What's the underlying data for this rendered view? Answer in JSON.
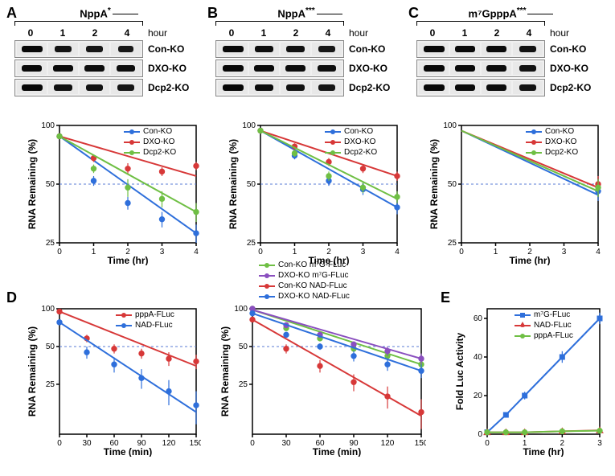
{
  "colors": {
    "blue": "#2e6fdb",
    "red": "#d73838",
    "green": "#6fbf44",
    "purple": "#8a4fbf",
    "grid": "#bbbbbb",
    "dashed": "#5a7bd6",
    "band": "#1a1a1a",
    "axis": "#000000"
  },
  "panels": {
    "A": {
      "label": "A",
      "title_prefix": "NppA",
      "title_symbol": "*",
      "title_trailing_line": true,
      "times": [
        "0",
        "1",
        "2",
        "4"
      ],
      "hour": "hour",
      "rows": [
        "Con-KO",
        "DXO-KO",
        "Dcp2-KO"
      ],
      "band_intensity": [
        [
          1.0,
          0.55,
          0.45,
          0.38
        ],
        [
          0.95,
          0.9,
          0.85,
          0.8
        ],
        [
          1.0,
          0.7,
          0.6,
          0.5
        ]
      ],
      "band_width": 26
    },
    "B": {
      "label": "B",
      "title_prefix": "NppA",
      "title_symbol": "***",
      "title_trailing_line": true,
      "times": [
        "0",
        "1",
        "2",
        "4"
      ],
      "hour": "hour",
      "rows": [
        "Con-KO",
        "DXO-KO",
        "Dcp2-KO"
      ],
      "band_intensity": [
        [
          1.0,
          0.8,
          0.7,
          0.45
        ],
        [
          1.0,
          0.9,
          0.85,
          0.75
        ],
        [
          1.0,
          0.8,
          0.7,
          0.5
        ]
      ],
      "band_width": 26
    },
    "C": {
      "label": "C",
      "title_prefix": "m⁷GpppA",
      "title_symbol": "***",
      "title_trailing_line": true,
      "times": [
        "0",
        "1",
        "2",
        "4"
      ],
      "hour": "hour",
      "rows": [
        "Con-KO",
        "DXO-KO",
        "Dcp2-KO"
      ],
      "band_intensity": [
        [
          1.0,
          0.95,
          0.88,
          0.6
        ],
        [
          1.0,
          0.95,
          0.88,
          0.6
        ],
        [
          1.0,
          0.95,
          0.88,
          0.6
        ]
      ],
      "band_width": 26
    }
  },
  "charts": {
    "chartA": {
      "x": [
        0,
        1,
        2,
        3,
        4
      ],
      "xlim": [
        0,
        4
      ],
      "xticks": [
        0,
        1,
        2,
        3,
        4
      ],
      "xlabel": "Time (hr)",
      "ylabel": "RNA Remaining (%)",
      "ylim": [
        25,
        100
      ],
      "yticks": [
        25,
        50,
        100
      ],
      "yscale": "log2_like",
      "series": [
        {
          "name": "Con-KO",
          "color": "blue",
          "x": [
            0,
            1,
            2,
            3,
            4
          ],
          "y": [
            88,
            52,
            40,
            33,
            28
          ],
          "fit_y": [
            88,
            28
          ],
          "err": [
            0,
            3,
            3,
            3,
            3
          ]
        },
        {
          "name": "DXO-KO",
          "color": "red",
          "x": [
            0,
            1,
            2,
            3,
            4
          ],
          "y": [
            88,
            68,
            60,
            58,
            62
          ],
          "fit_y": [
            88,
            55
          ],
          "err": [
            0,
            3,
            4,
            3,
            3
          ]
        },
        {
          "name": "Dcp2-KO",
          "color": "green",
          "x": [
            0,
            1,
            2,
            3,
            4
          ],
          "y": [
            88,
            60,
            48,
            42,
            36
          ],
          "fit_y": [
            88,
            36
          ],
          "err": [
            0,
            3,
            5,
            4,
            4
          ]
        }
      ],
      "legend": [
        [
          "Con-KO",
          "blue"
        ],
        [
          "DXO-KO",
          "red"
        ],
        [
          "Dcp2-KO",
          "green"
        ]
      ]
    },
    "chartB": {
      "x": [
        0,
        1,
        2,
        3,
        4
      ],
      "xlim": [
        0,
        4
      ],
      "xticks": [
        0,
        1,
        2,
        3,
        4
      ],
      "xlabel": "Time (hr)",
      "ylabel": "RNA Remaining (%)",
      "ylim": [
        25,
        100
      ],
      "yticks": [
        25,
        50,
        100
      ],
      "yscale": "log2_like",
      "series": [
        {
          "name": "Con-KO",
          "color": "blue",
          "x": [
            0,
            1,
            2,
            3,
            4
          ],
          "y": [
            94,
            70,
            52,
            47,
            38
          ],
          "fit_y": [
            94,
            38
          ],
          "err": [
            0,
            3,
            3,
            3,
            3
          ]
        },
        {
          "name": "DXO-KO",
          "color": "red",
          "x": [
            0,
            1,
            2,
            3,
            4
          ],
          "y": [
            94,
            78,
            65,
            60,
            55
          ],
          "fit_y": [
            94,
            55
          ],
          "err": [
            0,
            3,
            3,
            3,
            3
          ]
        },
        {
          "name": "Dcp2-KO",
          "color": "green",
          "x": [
            0,
            1,
            2,
            3,
            4
          ],
          "y": [
            94,
            72,
            55,
            48,
            43
          ],
          "fit_y": [
            94,
            42
          ],
          "err": [
            0,
            3,
            3,
            3,
            3
          ]
        }
      ],
      "legend": [
        [
          "Con-KO",
          "blue"
        ],
        [
          "DXO-KO",
          "red"
        ],
        [
          "Dcp2-KO",
          "green"
        ]
      ]
    },
    "chartC": {
      "x": [
        0,
        1,
        2,
        3,
        4
      ],
      "xlim": [
        0,
        4
      ],
      "xticks": [
        0,
        1,
        2,
        3,
        4
      ],
      "xlabel": "Time (hr)",
      "ylabel": "RNA Remaining (%)",
      "ylim": [
        25,
        100
      ],
      "yticks": [
        25,
        50,
        100
      ],
      "yscale": "log2_like",
      "series": [
        {
          "name": "Con-KO",
          "color": "blue",
          "x": [
            0,
            4
          ],
          "y": [
            94,
            46
          ],
          "fit_y": [
            94,
            44
          ],
          "points_x": [
            4
          ],
          "points_y": [
            46
          ],
          "err": [
            5
          ]
        },
        {
          "name": "DXO-KO",
          "color": "red",
          "x": [
            0,
            4
          ],
          "y": [
            94,
            50
          ],
          "fit_y": [
            94,
            48
          ],
          "points_x": [
            4
          ],
          "points_y": [
            50
          ],
          "err": [
            5
          ]
        },
        {
          "name": "Dcp2-KO",
          "color": "green",
          "x": [
            0,
            4
          ],
          "y": [
            94,
            48
          ],
          "fit_y": [
            94,
            46
          ],
          "points_x": [
            4
          ],
          "points_y": [
            48
          ],
          "err": [
            5
          ]
        }
      ],
      "legend": [
        [
          "Con-KO",
          "blue"
        ],
        [
          "DXO-KO",
          "red"
        ],
        [
          "Dcp2-KO",
          "green"
        ]
      ]
    },
    "chartD1": {
      "xlim": [
        0,
        150
      ],
      "xticks": [
        0,
        30,
        60,
        90,
        120,
        150
      ],
      "xlabel": "Time (min)",
      "ylabel": "RNA Remaining (%)",
      "ylim": [
        10,
        100
      ],
      "yticks": [
        25,
        50,
        100
      ],
      "yscale": "log2_like_ext",
      "series": [
        {
          "name": "pppA-FLuc",
          "color": "red",
          "x": [
            0,
            30,
            60,
            90,
            120,
            150
          ],
          "y": [
            95,
            58,
            48,
            44,
            40,
            38
          ],
          "fit_y": [
            95,
            35
          ],
          "err": [
            0,
            4,
            4,
            4,
            5,
            5
          ]
        },
        {
          "name": "NAD-FLuc",
          "color": "blue",
          "x": [
            0,
            30,
            60,
            90,
            120,
            150
          ],
          "y": [
            78,
            45,
            36,
            28,
            22,
            17
          ],
          "fit_y": [
            78,
            15
          ],
          "err": [
            0,
            5,
            5,
            5,
            5,
            5
          ]
        }
      ],
      "legend": [
        [
          "pppA-FLuc",
          "red"
        ],
        [
          "NAD-FLuc",
          "blue"
        ]
      ]
    },
    "chartD2": {
      "xlim": [
        0,
        150
      ],
      "xticks": [
        0,
        30,
        60,
        90,
        120,
        150
      ],
      "xlabel": "Time (min)",
      "ylabel": "RNA Remaining (%)",
      "ylim": [
        10,
        100
      ],
      "yticks": [
        25,
        50,
        100
      ],
      "yscale": "log2_like_ext",
      "series": [
        {
          "name": "Con-KO m7G-FLuc",
          "color": "green",
          "x": [
            0,
            30,
            60,
            90,
            120,
            150
          ],
          "y": [
            100,
            70,
            58,
            48,
            42,
            36
          ],
          "fit_y": [
            98,
            36
          ],
          "err": [
            0,
            3,
            3,
            3,
            4,
            4
          ]
        },
        {
          "name": "DXO-KO m7G-FLuc",
          "color": "purple",
          "x": [
            0,
            30,
            60,
            90,
            120,
            150
          ],
          "y": [
            100,
            74,
            62,
            52,
            46,
            40
          ],
          "fit_y": [
            98,
            40
          ],
          "err": [
            0,
            3,
            3,
            3,
            4,
            4
          ]
        },
        {
          "name": "Con-KO NAD-FLuc",
          "color": "red",
          "x": [
            0,
            30,
            60,
            90,
            120,
            150
          ],
          "y": [
            82,
            48,
            35,
            26,
            20,
            15
          ],
          "fit_y": [
            82,
            14
          ],
          "err": [
            0,
            4,
            4,
            4,
            4,
            4
          ]
        },
        {
          "name": "DXO-KO NAD-FLuc",
          "color": "blue",
          "x": [
            0,
            30,
            60,
            90,
            120,
            150
          ],
          "y": [
            92,
            62,
            50,
            42,
            36,
            32
          ],
          "fit_y": [
            92,
            32
          ],
          "err": [
            0,
            3,
            3,
            4,
            4,
            4
          ]
        }
      ],
      "legend": [
        [
          "Con-KO m⁷G-FLuc",
          "green"
        ],
        [
          "DXO-KO m⁷G-FLuc",
          "purple"
        ],
        [
          "Con-KO NAD-FLuc",
          "red"
        ],
        [
          "DXO-KO NAD-FLuc",
          "blue"
        ]
      ]
    },
    "chartE": {
      "xlim": [
        0,
        3
      ],
      "xticks": [
        0,
        1,
        2,
        3
      ],
      "xlabel": "Time (hr)",
      "ylabel": "Fold Luc Activity",
      "ylim": [
        0,
        65
      ],
      "yticks": [
        0,
        20,
        40,
        60
      ],
      "yscale": "linear",
      "series": [
        {
          "name": "m7G-FLuc",
          "color": "blue",
          "marker": "square",
          "x": [
            0,
            0.5,
            1,
            2,
            3
          ],
          "y": [
            1,
            10,
            20,
            40,
            60
          ],
          "err": [
            0,
            1,
            2,
            3,
            3
          ]
        },
        {
          "name": "NAD-FLuc",
          "color": "red",
          "marker": "triangle",
          "x": [
            0,
            0.5,
            1,
            2,
            3
          ],
          "y": [
            1,
            1,
            1,
            1.5,
            2
          ],
          "err": [
            0,
            0.5,
            0.5,
            0.5,
            0.5
          ]
        },
        {
          "name": "pppA-FLuc",
          "color": "green",
          "marker": "circle",
          "x": [
            0,
            0.5,
            1,
            2,
            3
          ],
          "y": [
            1,
            1,
            1,
            1.5,
            1.8
          ],
          "err": [
            0,
            0.5,
            0.5,
            0.5,
            0.5
          ]
        }
      ],
      "legend": [
        [
          "m⁷G-FLuc",
          "blue",
          "square"
        ],
        [
          "NAD-FLuc",
          "red",
          "triangle"
        ],
        [
          "pppA-FLuc",
          "green",
          "circle"
        ]
      ]
    }
  },
  "labels": {
    "D": "D",
    "E": "E"
  }
}
